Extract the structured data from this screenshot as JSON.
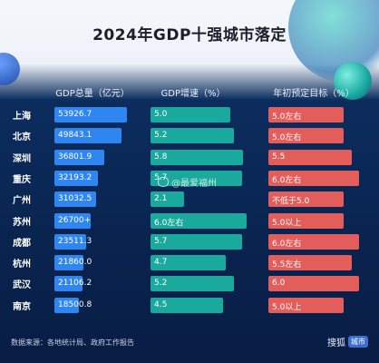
{
  "title": "2024年GDP十强城市落定",
  "headers": {
    "gdp": "GDP总量（亿元）",
    "growth": "GDP增速（%）",
    "target": "年初预定目标（%）"
  },
  "chart_data": {
    "type": "table",
    "title": "2024年GDP十强城市落定",
    "columns": [
      "GDP总量（亿元）",
      "GDP增速（%）",
      "年初预定目标（%）"
    ],
    "rows": [
      {
        "city": "上海",
        "gdp": 53926.7,
        "gdp_label": "53926.7",
        "growth": 5.0,
        "growth_label": "5.0",
        "target": 5.0,
        "target_label": "5.0左右"
      },
      {
        "city": "北京",
        "gdp": 49843.1,
        "gdp_label": "49843.1",
        "growth": 5.2,
        "growth_label": "5.2",
        "target": 5.0,
        "target_label": "5.0左右"
      },
      {
        "city": "深圳",
        "gdp": 36801.9,
        "gdp_label": "36801.9",
        "growth": 5.8,
        "growth_label": "5.8",
        "target": 5.5,
        "target_label": "5.5"
      },
      {
        "city": "重庆",
        "gdp": 32193.2,
        "gdp_label": "32193.2",
        "growth": 5.7,
        "growth_label": "5.7",
        "target": 6.0,
        "target_label": "6.0左右"
      },
      {
        "city": "广州",
        "gdp": 31032.5,
        "gdp_label": "31032.5",
        "growth": 2.1,
        "growth_label": "2.1",
        "target": 5.0,
        "target_label": "不低于5.0"
      },
      {
        "city": "苏州",
        "gdp": 26700,
        "gdp_label": "26700+",
        "growth": 6.0,
        "growth_label": "6.0左右",
        "target": 5.0,
        "target_label": "5.0以上"
      },
      {
        "city": "成都",
        "gdp": 23511.3,
        "gdp_label": "23511.3",
        "growth": 5.7,
        "growth_label": "5.7",
        "target": 6.0,
        "target_label": "6.0左右"
      },
      {
        "city": "杭州",
        "gdp": 21860.0,
        "gdp_label": "21860.0",
        "growth": 4.7,
        "growth_label": "4.7",
        "target": 5.5,
        "target_label": "5.5左右"
      },
      {
        "city": "武汉",
        "gdp": 21106.2,
        "gdp_label": "21106.2",
        "growth": 5.2,
        "growth_label": "5.2",
        "target": 6.0,
        "target_label": "6.0"
      },
      {
        "city": "南京",
        "gdp": 18500.8,
        "gdp_label": "18500.8",
        "growth": 4.5,
        "growth_label": "4.5",
        "target": 5.0,
        "target_label": "5.0以上"
      }
    ]
  },
  "colors": {
    "gdp_bar": "#2f86f0",
    "growth_bar": "#1aa99d",
    "target_bar": "#e35d5b"
  },
  "footer": {
    "source": "数据来源：各地统计局、政府工作报告"
  },
  "logo": {
    "text": "搜狐",
    "badge": "城市"
  },
  "watermark": {
    "text": "@最爱福州"
  }
}
